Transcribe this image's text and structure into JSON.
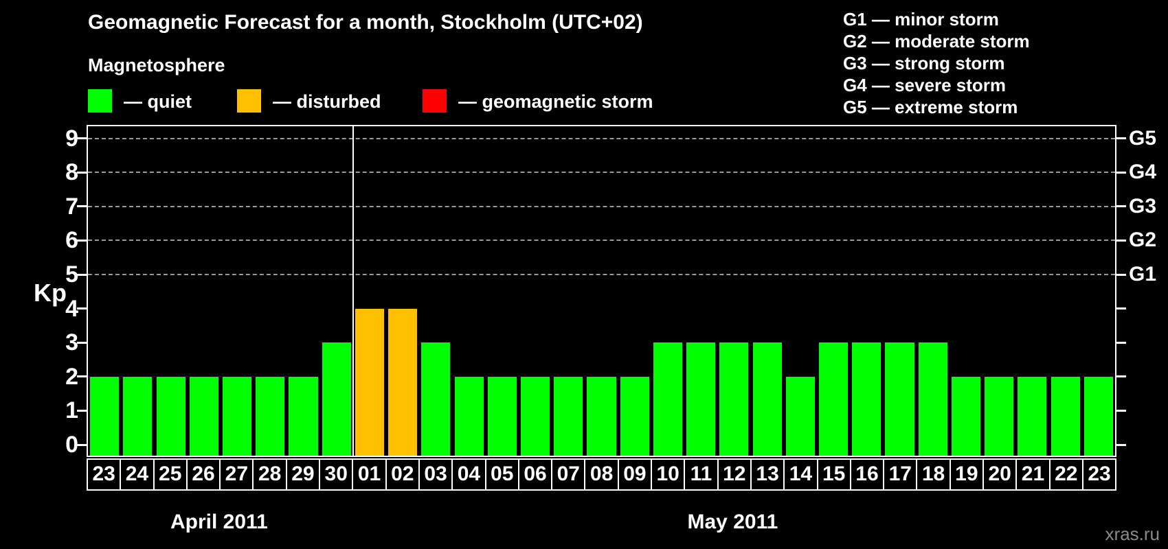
{
  "header": {
    "title": "Geomagnetic Forecast for a month, Stockholm (UTC+02)"
  },
  "magnetosphere_legend": {
    "title": "Magnetosphere",
    "items": [
      {
        "label": "— quiet",
        "color": "#00FF00",
        "status": "quiet"
      },
      {
        "label": "— disturbed",
        "color": "#FFC000",
        "status": "disturbed"
      },
      {
        "label": "— geomagnetic storm",
        "color": "#FF0000",
        "status": "storm"
      }
    ]
  },
  "g_scale_legend": {
    "items": [
      {
        "text": "G1 — minor storm"
      },
      {
        "text": "G2 — moderate storm"
      },
      {
        "text": "G3 — strong storm"
      },
      {
        "text": "G4 — severe storm"
      },
      {
        "text": "G5 — extreme storm"
      }
    ]
  },
  "watermark": "xras.ru",
  "chart_data": {
    "type": "bar",
    "title": "Geomagnetic Forecast for a month, Stockholm (UTC+02)",
    "xlabel": "",
    "ylabel": "Kp",
    "ylim": [
      0,
      9
    ],
    "y_ticks": [
      0,
      1,
      2,
      3,
      4,
      5,
      6,
      7,
      8,
      9
    ],
    "gridlines_at_kp": [
      5,
      6,
      7,
      8,
      9
    ],
    "grid": "horizontal dashed at Kp 5-9 only",
    "legend_position": "top-left",
    "right_axis_labels": [
      {
        "kp": 5,
        "label": "G1"
      },
      {
        "kp": 6,
        "label": "G2"
      },
      {
        "kp": 7,
        "label": "G3"
      },
      {
        "kp": 8,
        "label": "G4"
      },
      {
        "kp": 9,
        "label": "G5"
      }
    ],
    "status_colors": {
      "quiet": "#00FF00",
      "disturbed": "#FFC000",
      "storm": "#FF0000"
    },
    "bar_color_default": "#00FF00",
    "groups": [
      {
        "month": "April 2011",
        "days": [
          {
            "day": "23",
            "kp": 2,
            "status": "quiet"
          },
          {
            "day": "24",
            "kp": 2,
            "status": "quiet"
          },
          {
            "day": "25",
            "kp": 2,
            "status": "quiet"
          },
          {
            "day": "26",
            "kp": 2,
            "status": "quiet"
          },
          {
            "day": "27",
            "kp": 2,
            "status": "quiet"
          },
          {
            "day": "28",
            "kp": 2,
            "status": "quiet"
          },
          {
            "day": "29",
            "kp": 2,
            "status": "quiet"
          },
          {
            "day": "30",
            "kp": 3,
            "status": "quiet"
          }
        ]
      },
      {
        "month": "May 2011",
        "days": [
          {
            "day": "01",
            "kp": 4,
            "status": "disturbed"
          },
          {
            "day": "02",
            "kp": 4,
            "status": "disturbed"
          },
          {
            "day": "03",
            "kp": 3,
            "status": "quiet"
          },
          {
            "day": "04",
            "kp": 2,
            "status": "quiet"
          },
          {
            "day": "05",
            "kp": 2,
            "status": "quiet"
          },
          {
            "day": "06",
            "kp": 2,
            "status": "quiet"
          },
          {
            "day": "07",
            "kp": 2,
            "status": "quiet"
          },
          {
            "day": "08",
            "kp": 2,
            "status": "quiet"
          },
          {
            "day": "09",
            "kp": 2,
            "status": "quiet"
          },
          {
            "day": "10",
            "kp": 3,
            "status": "quiet"
          },
          {
            "day": "11",
            "kp": 3,
            "status": "quiet"
          },
          {
            "day": "12",
            "kp": 3,
            "status": "quiet"
          },
          {
            "day": "13",
            "kp": 3,
            "status": "quiet"
          },
          {
            "day": "14",
            "kp": 2,
            "status": "quiet"
          },
          {
            "day": "15",
            "kp": 3,
            "status": "quiet"
          },
          {
            "day": "16",
            "kp": 3,
            "status": "quiet"
          },
          {
            "day": "17",
            "kp": 3,
            "status": "quiet"
          },
          {
            "day": "18",
            "kp": 3,
            "status": "quiet"
          },
          {
            "day": "19",
            "kp": 2,
            "status": "quiet"
          },
          {
            "day": "20",
            "kp": 2,
            "status": "quiet"
          },
          {
            "day": "21",
            "kp": 2,
            "status": "quiet"
          },
          {
            "day": "22",
            "kp": 2,
            "status": "quiet"
          },
          {
            "day": "23",
            "kp": 2,
            "status": "quiet"
          }
        ]
      }
    ]
  }
}
